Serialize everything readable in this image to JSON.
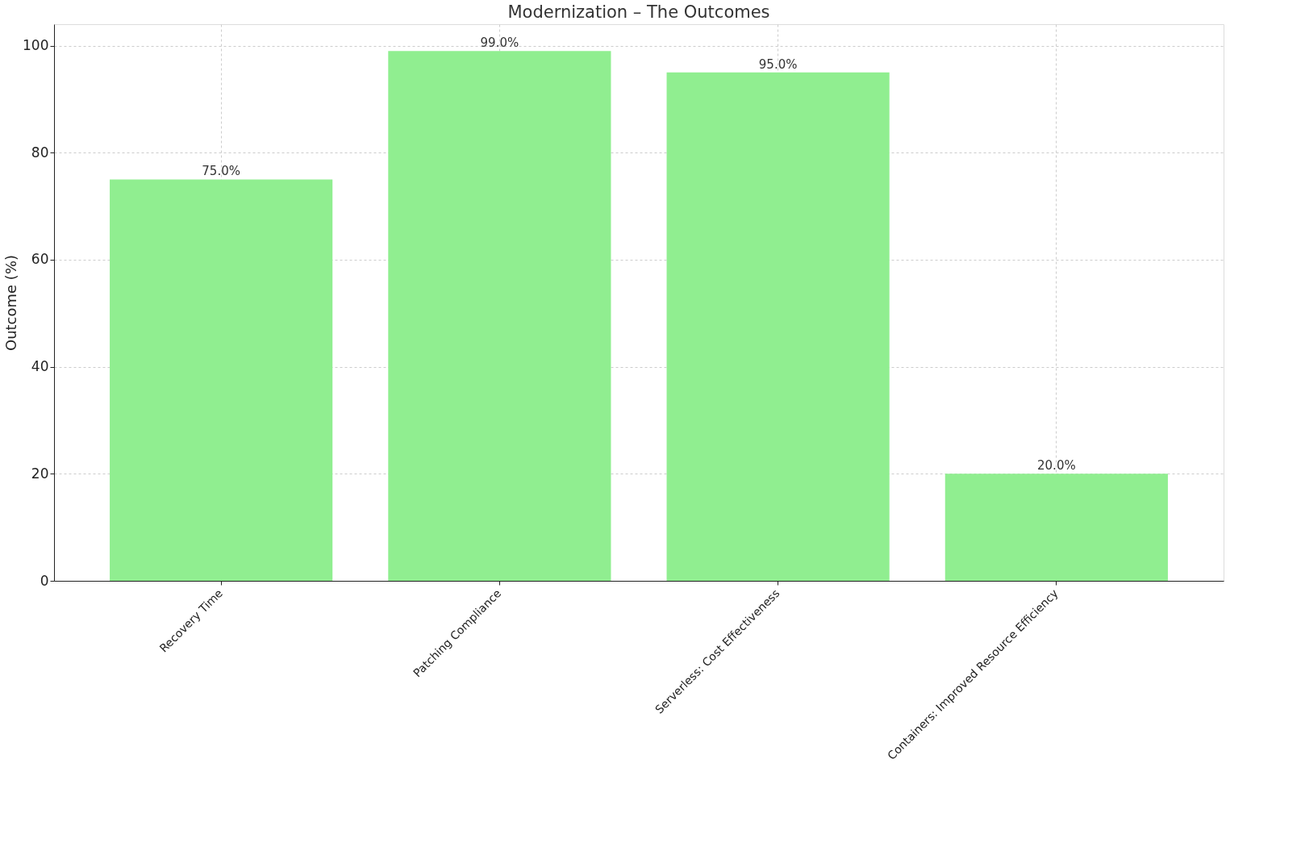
{
  "chart_data": {
    "type": "bar",
    "title": "Modernization – The Outcomes",
    "ylabel": "Outcome (%)",
    "categories": [
      "Recovery Time",
      "Patching Compliance",
      "Serverless: Cost Effectiveness",
      "Containers: Improved Resource Efficiency"
    ],
    "values": [
      75,
      99,
      95,
      20
    ],
    "color": "#90ee90",
    "value_labels": [
      "75.0%",
      "99.0%",
      "95.0%",
      "20.0%"
    ],
    "ylim": [
      0,
      104
    ],
    "yticks": [
      0,
      20,
      40,
      60,
      80,
      100
    ],
    "grid": true
  }
}
